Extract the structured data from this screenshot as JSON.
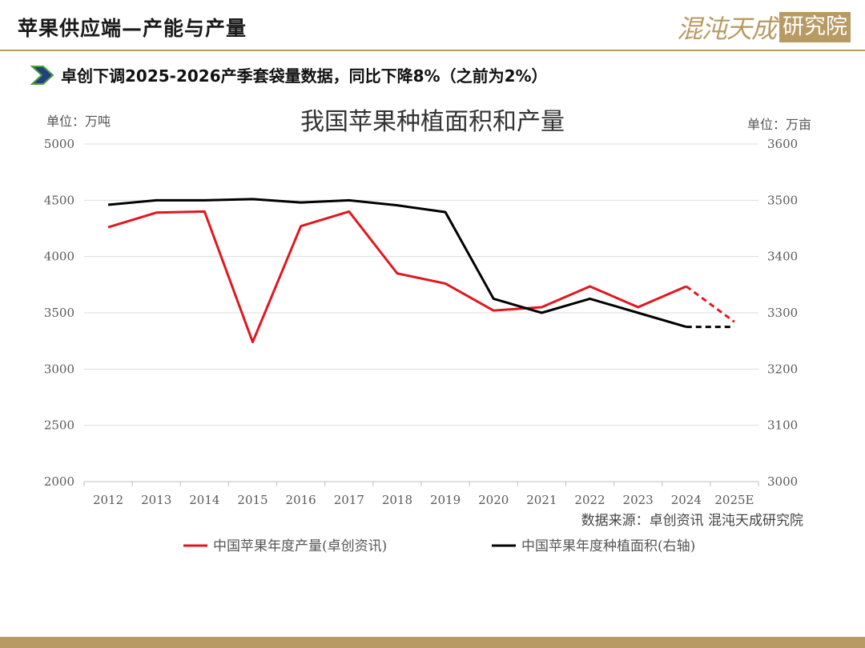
{
  "header": {
    "title": "苹果供应端—产能与产量",
    "brand_text": "混沌天成",
    "brand_badge": "研究院"
  },
  "subtitle": {
    "text": "卓创下调2025-2026产季套袋量数据，同比下降8%（之前为2%）",
    "arrow_icon": "chevron-right-icon"
  },
  "colors": {
    "accent": "#b89a64",
    "arrow_fill": "#24407a",
    "arrow_outline": "#4aa046",
    "series_production": "#e0171f",
    "series_area": "#000000"
  },
  "chart_data": {
    "type": "line",
    "title": "我国苹果种植面积和产量",
    "ylabel_left": "单位：万吨",
    "ylabel_right": "单位：万亩",
    "source": "数据来源：卓创资讯  混沌天成研究院",
    "categories": [
      "2012",
      "2013",
      "2014",
      "2015",
      "2016",
      "2017",
      "2018",
      "2019",
      "2020",
      "2021",
      "2022",
      "2023",
      "2024",
      "2025E"
    ],
    "ylim_left": [
      2000,
      5000
    ],
    "yticks_left": [
      "2000",
      "2500",
      "3000",
      "3500",
      "4000",
      "4500",
      "5000"
    ],
    "ylim_right": [
      3000,
      3600
    ],
    "yticks_right": [
      "3000",
      "3100",
      "3200",
      "3300",
      "3400",
      "3500",
      "3600"
    ],
    "grid": true,
    "legend_position": "bottom",
    "series": [
      {
        "name": "中国苹果年度产量(卓创资讯)",
        "axis": "left",
        "values": [
          4260,
          4390,
          4400,
          3240,
          4270,
          4400,
          3850,
          3760,
          3520,
          3550,
          3735,
          3550,
          3735,
          3420
        ],
        "dashed_from_index": 12
      },
      {
        "name": "中国苹果年度种植面积(右轴)",
        "axis": "right",
        "values": [
          3492,
          3500,
          3500,
          3502,
          3496,
          3500,
          3491,
          3479,
          3325,
          3300,
          3325,
          3300,
          3275,
          3275
        ],
        "dashed_from_index": 12
      }
    ]
  }
}
